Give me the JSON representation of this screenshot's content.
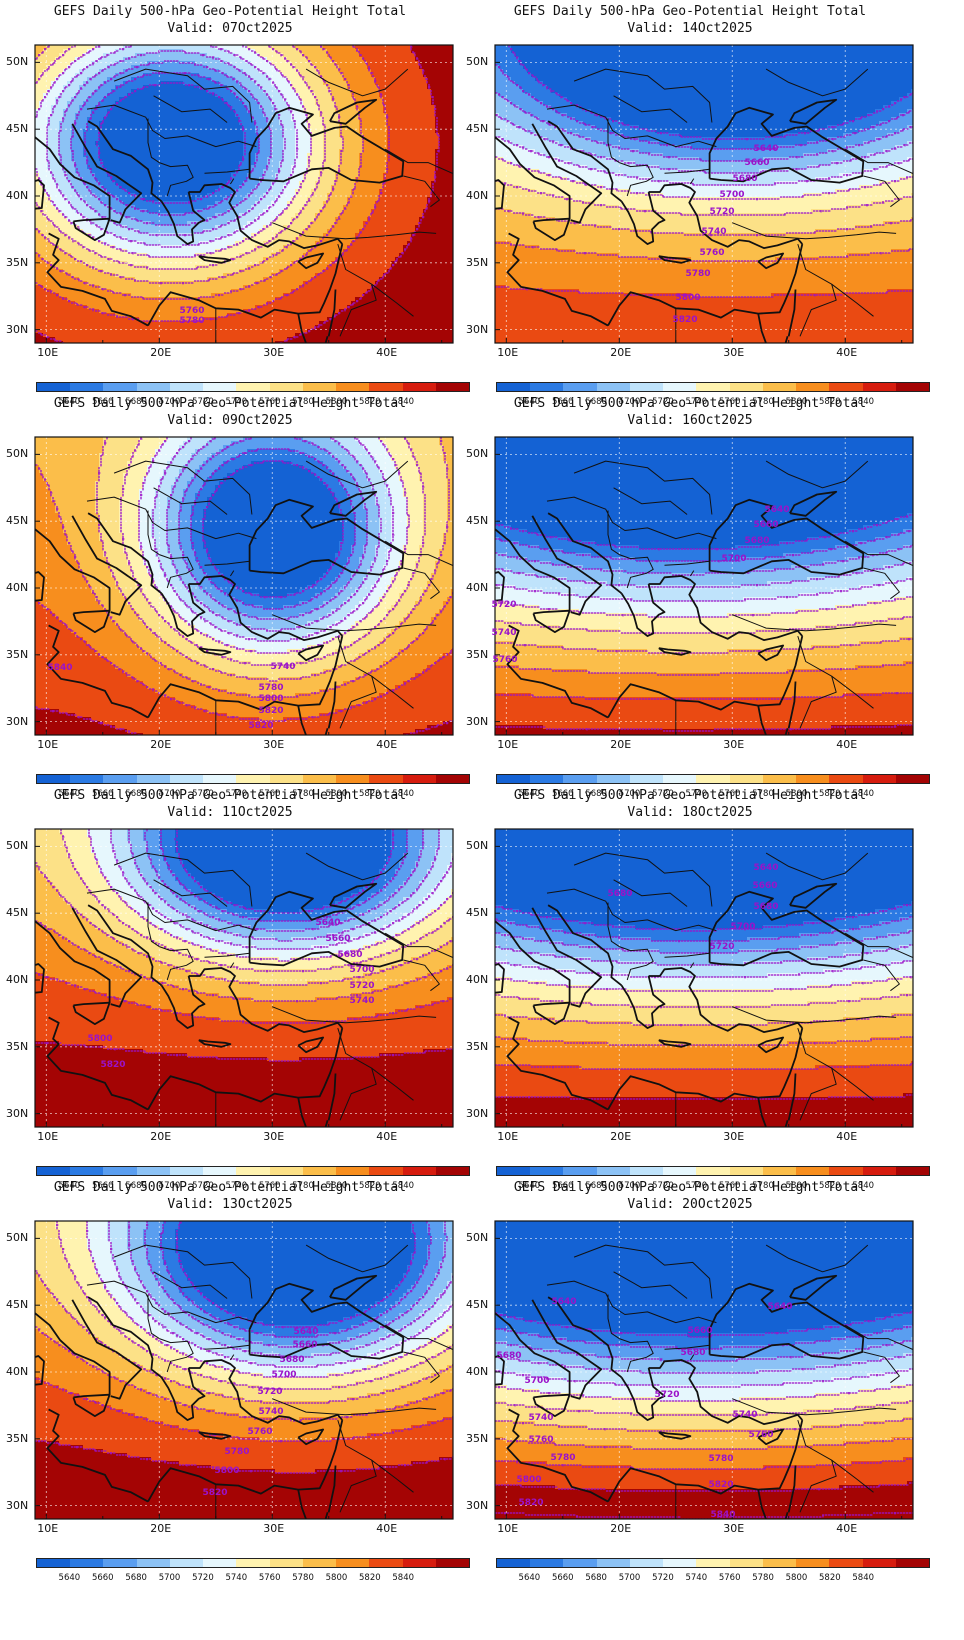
{
  "colors": {
    "levels": [
      "#1462d4",
      "#2b7ae3",
      "#5a9ef0",
      "#8cc2f5",
      "#bfe3fb",
      "#e6f7fd",
      "#fff3b0",
      "#fce187",
      "#fbbe4a",
      "#f78e1e",
      "#ea4a12",
      "#d61c0e",
      "#a40404"
    ],
    "contour": "#9b12c9",
    "coast": "#111111"
  },
  "colorbar": {
    "labels": [
      "5640",
      "5660",
      "5680",
      "5700",
      "5720",
      "5740",
      "5760",
      "5780",
      "5800",
      "5820",
      "5840"
    ]
  },
  "axes": {
    "lat_labels": [
      "50N",
      "45N",
      "40N",
      "35N",
      "30N"
    ],
    "lon_labels": [
      "10E",
      "20E",
      "30E",
      "40E"
    ]
  },
  "panels": [
    {
      "title": "GEFS Daily 500-hPa Geo-Potential Height Total",
      "valid": "Valid: 07Oct2025",
      "contour_labels": [
        "5760",
        "5780"
      ]
    },
    {
      "title": "GEFS Daily 500-hPa Geo-Potential Height Total",
      "valid": "Valid: 14Oct2025",
      "contour_labels": [
        "5640",
        "5660",
        "5680",
        "5700",
        "5720",
        "5740",
        "5760",
        "5780",
        "5800",
        "5820"
      ]
    },
    {
      "title": "GEFS Daily 500-hPa Geo-Potential Height Total",
      "valid": "Valid: 09Oct2025",
      "contour_labels": [
        "5740",
        "5780",
        "5800",
        "5820",
        "5820",
        "5840"
      ]
    },
    {
      "title": "GEFS Daily 500-hPa Geo-Potential Height Total",
      "valid": "Valid: 16Oct2025",
      "contour_labels": [
        "5640",
        "5660",
        "5680",
        "5700",
        "5720",
        "5740",
        "5760"
      ]
    },
    {
      "title": "GEFS Daily 500-hPa Geo-Potential Height Total",
      "valid": "Valid: 11Oct2025",
      "contour_labels": [
        "5640",
        "5660",
        "5680",
        "5700",
        "5720",
        "5740",
        "5800",
        "5820"
      ]
    },
    {
      "title": "GEFS Daily 500-hPa Geo-Potential Height Total",
      "valid": "Valid: 18Oct2025",
      "contour_labels": [
        "5640",
        "5660",
        "5680",
        "5680",
        "5700",
        "5720"
      ]
    },
    {
      "title": "GEFS Daily 500-hPa Geo-Potential Height Total",
      "valid": "Valid: 13Oct2025",
      "contour_labels": [
        "5640",
        "5660",
        "5680",
        "5700",
        "5720",
        "5740",
        "5760",
        "5780",
        "5800",
        "5820"
      ]
    },
    {
      "title": "GEFS Daily 500-hPa Geo-Potential Height Total",
      "valid": "Valid: 20Oct2025",
      "contour_labels": [
        "5640",
        "5640",
        "5660",
        "5680",
        "5680",
        "5700",
        "5720",
        "5740",
        "5740",
        "5760",
        "5760",
        "5780",
        "5780",
        "5800",
        "5820",
        "5820",
        "5840"
      ]
    }
  ]
}
